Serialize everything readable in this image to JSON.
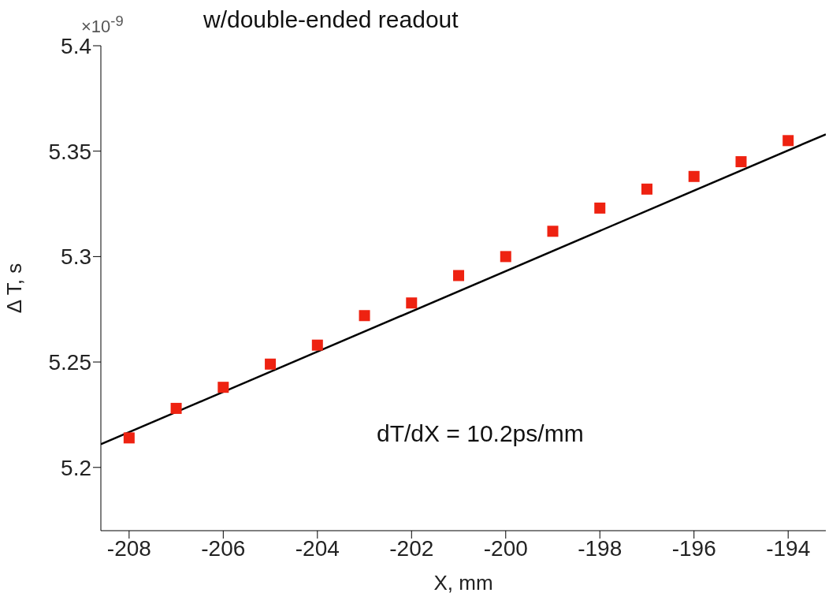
{
  "chart_data": {
    "type": "scatter",
    "title": "w/double-ended readout",
    "xlabel": "X, mm",
    "ylabel": "Δ T, s",
    "annotations": [
      "×10$^{-9}$",
      "dT/dX = 10.2ps/mm"
    ],
    "series": [
      {
        "color": "#ee2211",
        "x": [
          -208,
          -207,
          -206,
          -205,
          -204,
          -203,
          -202,
          -201,
          -200,
          -199,
          -198,
          -197,
          -196,
          -195,
          -194
        ],
        "values": [
          5.214,
          5.228,
          5.238,
          5.249,
          5.258,
          5.272,
          5.278,
          5.291,
          5.3,
          5.312,
          5.323,
          5.332,
          5.338,
          5.345,
          5.355
        ]
      },
      {
        "type": "line",
        "marker": "none",
        "color": "#000000",
        "x": [
          -208.6,
          -193.2
        ],
        "values": [
          5.211,
          5.358
        ]
      }
    ],
    "xlim": [
      -208.6,
      -193.2
    ],
    "xticks": [
      -208,
      -206,
      -204,
      -202,
      -200,
      -198,
      -196,
      -194
    ],
    "ylim": [
      5.17,
      5.4
    ],
    "yticks": [
      5.2,
      5.25,
      5.3,
      5.35,
      5.4
    ],
    "marker": "square",
    "line_style": "solid",
    "grid": false
  }
}
